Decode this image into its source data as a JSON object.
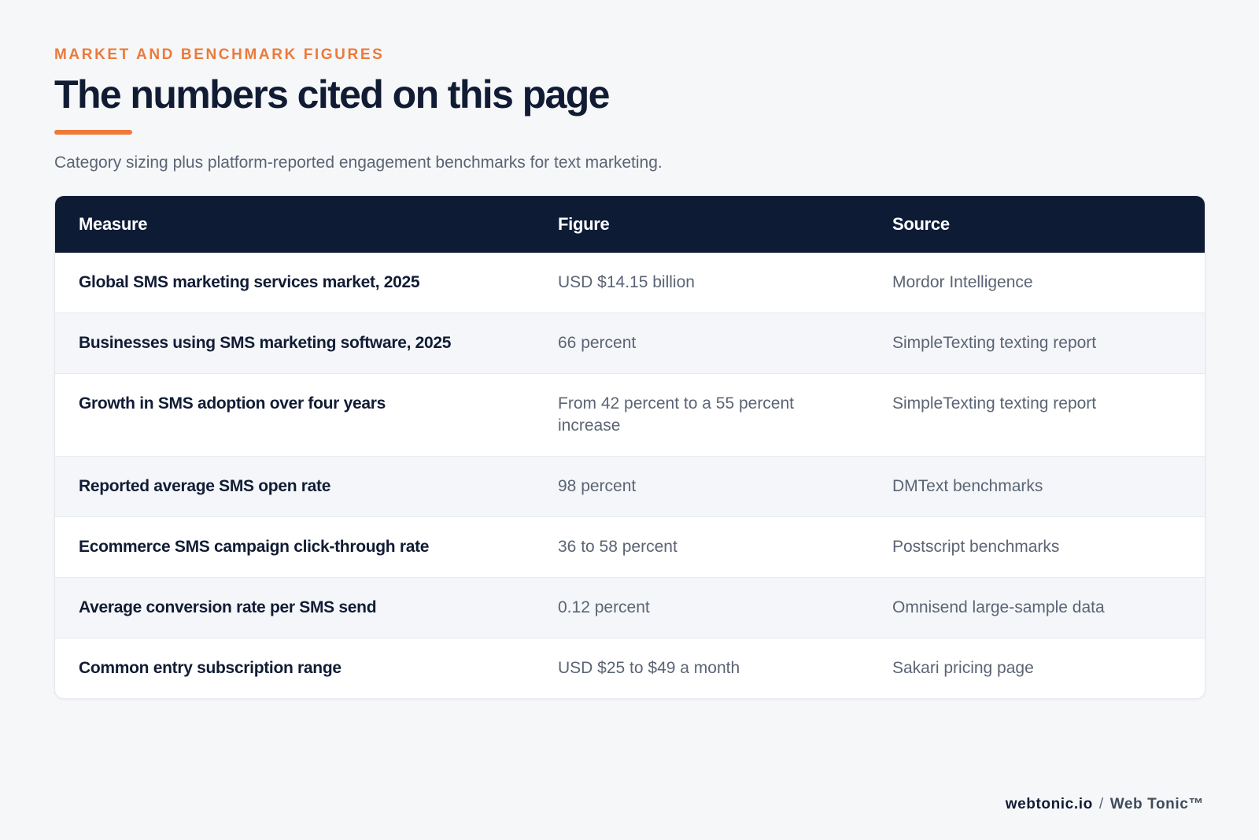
{
  "header": {
    "eyebrow": "MARKET AND BENCHMARK FIGURES",
    "title": "The numbers cited on this page",
    "subtitle": "Category sizing plus platform-reported engagement benchmarks for text marketing."
  },
  "table": {
    "columns": [
      "Measure",
      "Figure",
      "Source"
    ],
    "rows": [
      {
        "measure": "Global SMS marketing services market, 2025",
        "figure": "USD $14.15 billion",
        "source": "Mordor Intelligence"
      },
      {
        "measure": "Businesses using SMS marketing software, 2025",
        "figure": "66 percent",
        "source": "SimpleTexting texting report"
      },
      {
        "measure": "Growth in SMS adoption over four years",
        "figure": "From 42 percent to a 55 percent increase",
        "source": "SimpleTexting texting report"
      },
      {
        "measure": "Reported average SMS open rate",
        "figure": "98 percent",
        "source": "DMText benchmarks"
      },
      {
        "measure": "Ecommerce SMS campaign click-through rate",
        "figure": "36 to 58 percent",
        "source": "Postscript benchmarks"
      },
      {
        "measure": "Average conversion rate per SMS send",
        "figure": "0.12 percent",
        "source": "Omnisend large-sample data"
      },
      {
        "measure": "Common entry subscription range",
        "figure": "USD $25 to $49 a month",
        "source": "Sakari pricing page"
      }
    ]
  },
  "footer": {
    "domain": "webtonic.io",
    "separator": "/",
    "brand": "Web Tonic™"
  },
  "colors": {
    "accent": "#ec7a3a",
    "header_bg": "#0d1b35",
    "page_bg": "#f6f7f9"
  }
}
